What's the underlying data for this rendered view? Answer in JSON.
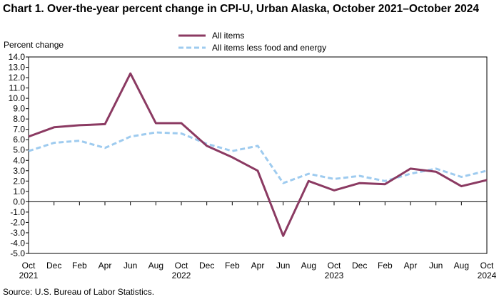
{
  "source": "Source: U.S. Bureau of Labor Statistics.",
  "chart_data": {
    "type": "line",
    "title": "Chart 1. Over-the-year percent change in CPI-U, Urban Alaska, October 2021–October 2024",
    "ylabel": "Percent change",
    "xlabel": "",
    "ylim": [
      -5.0,
      14.0
    ],
    "ytick_step": 1.0,
    "ytick_labels": [
      "14.0",
      "13.0",
      "12.0",
      "11.0",
      "10.0",
      "9.0",
      "8.0",
      "7.0",
      "6.0",
      "5.0",
      "4.0",
      "3.0",
      "2.0",
      "1.0",
      "0.0",
      "-1.0",
      "-2.0",
      "-3.0",
      "-4.0",
      "-5.0"
    ],
    "categories": [
      "Oct 2021",
      "Dec 2021",
      "Feb 2022",
      "Apr 2022",
      "Jun 2022",
      "Aug 2022",
      "Oct 2022",
      "Dec 2022",
      "Feb 2023",
      "Apr 2023",
      "Jun 2023",
      "Aug 2023",
      "Oct 2023",
      "Dec 2023",
      "Feb 2024",
      "Apr 2024",
      "Jun 2024",
      "Aug 2024",
      "Oct 2024"
    ],
    "x_tick_labels": [
      "Oct",
      "Dec",
      "Feb",
      "Apr",
      "Jun",
      "Aug",
      "Oct",
      "Dec",
      "Feb",
      "Apr",
      "Jun",
      "Aug",
      "Oct",
      "Dec",
      "Feb",
      "Apr",
      "Jun",
      "Aug",
      "Oct"
    ],
    "year_labels": [
      {
        "index": 0,
        "label": "2021"
      },
      {
        "index": 6,
        "label": "2022"
      },
      {
        "index": 12,
        "label": "2023"
      },
      {
        "index": 18,
        "label": "2024"
      }
    ],
    "series": [
      {
        "name": "All items",
        "color": "#8b3a62",
        "style": "solid",
        "values": [
          6.3,
          7.2,
          7.4,
          7.5,
          12.4,
          7.6,
          7.6,
          5.4,
          4.3,
          3.0,
          -3.3,
          2.0,
          1.1,
          1.8,
          1.7,
          3.2,
          2.9,
          1.5,
          2.1
        ]
      },
      {
        "name": "All items less food and energy",
        "color": "#9ecbef",
        "style": "dashed",
        "values": [
          4.9,
          5.7,
          5.9,
          5.2,
          6.3,
          6.7,
          6.6,
          5.6,
          4.9,
          5.4,
          1.8,
          2.7,
          2.2,
          2.5,
          2.0,
          2.7,
          3.2,
          2.4,
          3.0
        ]
      }
    ],
    "legend_position": "top-center",
    "grid": false
  }
}
